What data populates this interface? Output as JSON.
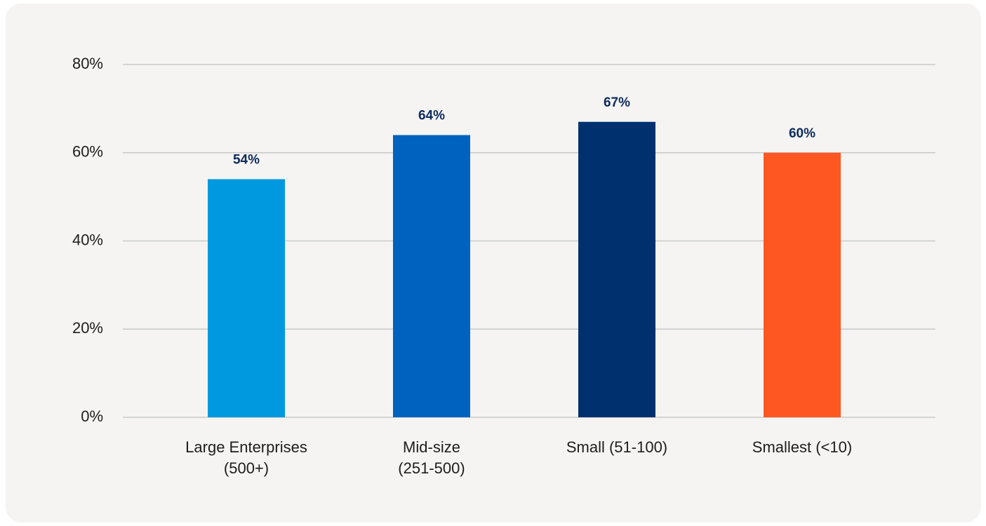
{
  "chart_data": {
    "type": "bar",
    "categories": [
      "Large Enterprises\n(500+)",
      "Mid-size\n(251-500)",
      "Small (51-100)",
      "Smallest (<10)"
    ],
    "values": [
      54,
      64,
      67,
      60
    ],
    "value_labels": [
      "54%",
      "64%",
      "67%",
      "60%"
    ],
    "colors": [
      "#0099e0",
      "#0062bf",
      "#00316e",
      "#ff5722"
    ],
    "ylim": [
      0,
      80
    ],
    "yticks": [
      {
        "value": 0,
        "label": "0%"
      },
      {
        "value": 20,
        "label": "20%"
      },
      {
        "value": 40,
        "label": "40%"
      },
      {
        "value": 60,
        "label": "60%"
      },
      {
        "value": 80,
        "label": "80%"
      }
    ],
    "grid": true
  }
}
